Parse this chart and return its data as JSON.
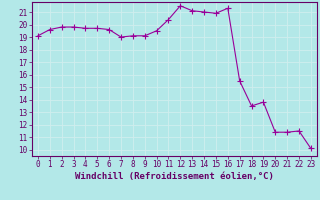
{
  "x": [
    0,
    1,
    2,
    3,
    4,
    5,
    6,
    7,
    8,
    9,
    10,
    11,
    12,
    13,
    14,
    15,
    16,
    17,
    18,
    19,
    20,
    21,
    22,
    23
  ],
  "y": [
    19.1,
    19.6,
    19.8,
    19.8,
    19.7,
    19.7,
    19.6,
    19.0,
    19.1,
    19.1,
    19.5,
    20.4,
    21.5,
    21.1,
    21.0,
    20.9,
    21.3,
    15.5,
    13.5,
    13.8,
    11.4,
    11.4,
    11.5,
    10.1
  ],
  "line_color": "#990099",
  "marker": "+",
  "marker_size": 4,
  "bg_color": "#b3e8e8",
  "grid_color": "#d0eeee",
  "xlabel": "Windchill (Refroidissement éolien,°C)",
  "yticks": [
    10,
    11,
    12,
    13,
    14,
    15,
    16,
    17,
    18,
    19,
    20,
    21
  ],
  "xlim": [
    -0.5,
    23.5
  ],
  "ylim": [
    9.5,
    21.8
  ],
  "title_color": "#660066",
  "axis_color": "#660066",
  "tick_fontsize": 5.5,
  "label_fontsize": 6.5
}
